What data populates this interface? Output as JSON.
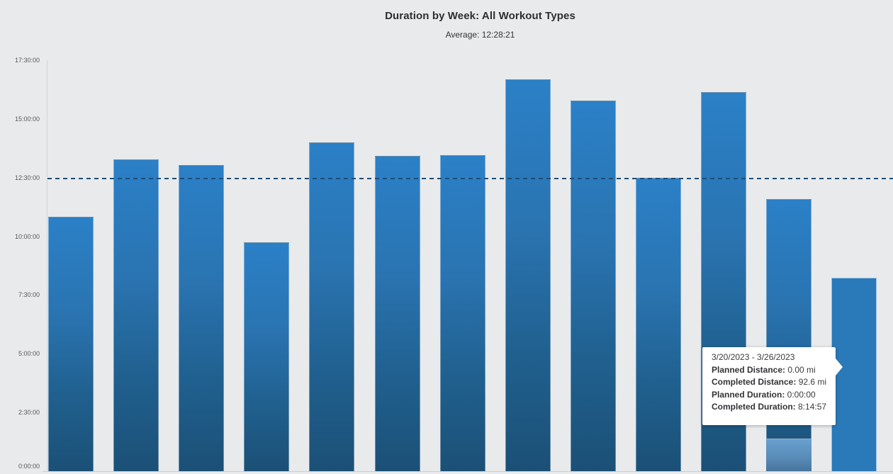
{
  "chart_data": {
    "type": "bar",
    "title": "Duration by Week: All Workout Types",
    "subtitle": "Average: 12:28:21",
    "average_duration": "12:28:21",
    "average_hours": 12.4725,
    "ylabel": "",
    "xlabel": "",
    "ylim_hours": [
      0,
      17.5
    ],
    "grid": false,
    "legend_position": "none",
    "x_axis_labels_visible": false,
    "yticks": [
      {
        "label": "17:30:00",
        "hours": 17.5
      },
      {
        "label": "15:00:00",
        "hours": 15.0
      },
      {
        "label": "12:30:00",
        "hours": 12.5
      },
      {
        "label": "10:00:00",
        "hours": 10.0
      },
      {
        "label": "7:30:00",
        "hours": 7.5
      },
      {
        "label": "5:00:00",
        "hours": 5.0
      },
      {
        "label": "2:30:00",
        "hours": 2.5
      },
      {
        "label": "0:00:00",
        "hours": 0.0
      }
    ],
    "bars": [
      {
        "index": 1,
        "hours": 10.83,
        "duration_approx": "10:50:00"
      },
      {
        "index": 2,
        "hours": 13.28,
        "duration_approx": "13:17:00"
      },
      {
        "index": 3,
        "hours": 13.04,
        "duration_approx": "13:02:00"
      },
      {
        "index": 4,
        "hours": 9.75,
        "duration_approx": "9:45:00"
      },
      {
        "index": 5,
        "hours": 14.0,
        "duration_approx": "14:00:00"
      },
      {
        "index": 6,
        "hours": 13.43,
        "duration_approx": "13:26:00"
      },
      {
        "index": 7,
        "hours": 13.46,
        "duration_approx": "13:28:00"
      },
      {
        "index": 8,
        "hours": 16.69,
        "duration_approx": "16:41:00"
      },
      {
        "index": 9,
        "hours": 15.78,
        "duration_approx": "15:47:00"
      },
      {
        "index": 10,
        "hours": 12.49,
        "duration_approx": "12:29:00"
      },
      {
        "index": 11,
        "hours": 16.14,
        "duration_approx": "16:08:00"
      },
      {
        "index": 12,
        "hours": 11.59,
        "duration_approx": "11:35:00",
        "planned_segment_hours": 1.39
      },
      {
        "index": 13,
        "hours": 8.249,
        "duration_approx": "8:14:57",
        "hovered": true,
        "week": "3/20/2023 - 3/26/2023"
      }
    ]
  },
  "tooltip": {
    "date_range": "3/20/2023 - 3/26/2023",
    "rows": [
      {
        "label": "Planned Distance:",
        "value": " 0.00 mi"
      },
      {
        "label": "Completed Distance:",
        "value": " 92.6 mi"
      },
      {
        "label": "Planned Duration:",
        "value": " 0:00:00"
      },
      {
        "label": "Completed Duration:",
        "value": " 8:14:57"
      }
    ]
  },
  "colors": {
    "background": "#e9eaec",
    "bar_gradient_top": "#2b80c7",
    "bar_gradient_bottom": "#1b5076",
    "bar_hovered": "#2a79b8",
    "planned_segment_top": "#689fce",
    "planned_segment_bottom": "#47759e",
    "average_line": "#1e4d77",
    "axis_line": "#d3d4d6",
    "tick_text": "#56575a",
    "title_text": "#2e2e30",
    "tooltip_background": "#ffffff",
    "tooltip_text": "#3a3b3d"
  }
}
